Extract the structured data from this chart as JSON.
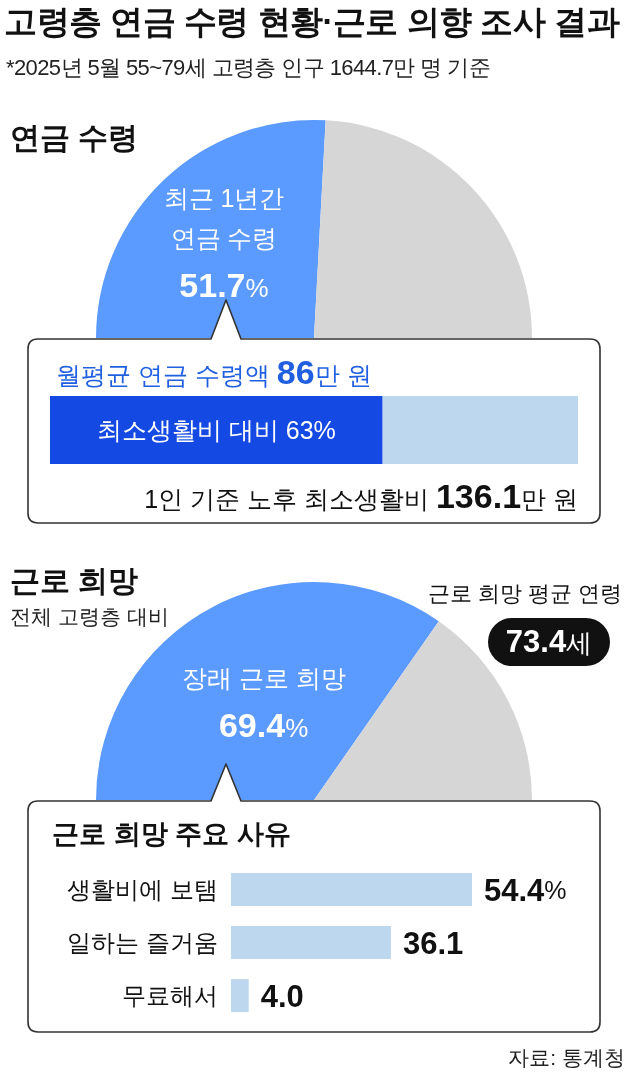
{
  "chart_data": [
    {
      "type": "other",
      "title": "고령층 연금 수령 현황·근로 의향 조사 결과",
      "subtitle": "*2025년 5월 55~79세 고령층 인구 1644.7만 명 기준"
    },
    {
      "type": "pie",
      "title": "연금 수령",
      "categories": [
        "최근 1년간 연금 수령",
        null
      ],
      "values": [
        51.7,
        48.3
      ],
      "colors": [
        "#5b9aff",
        "#d6d6d6"
      ],
      "value_labels": [
        "51.7%",
        null
      ]
    },
    {
      "type": "bar",
      "title": "월평균 연금 수령액 86만 원",
      "orientation": "horizontal",
      "stacked": true,
      "categories": [
        null
      ],
      "series": [
        {
          "color": "#1449e3",
          "values": [
            63
          ],
          "value_labels": [
            "최소생활비 대비 63%"
          ]
        },
        {
          "color": "#bdd7ef",
          "values": [
            37
          ]
        }
      ],
      "xlim": [
        0,
        100
      ],
      "tick_labels": false,
      "annotations": [
        "1인 기준 노후 최소생활비 136.1만 원"
      ]
    },
    {
      "type": "pie",
      "title": "근로 희망",
      "subtitle": "전체 고령층 대비",
      "categories": [
        "장래 근로 희망",
        null
      ],
      "values": [
        69.4,
        30.6
      ],
      "colors": [
        "#5b9aff",
        "#d6d6d6"
      ],
      "value_labels": [
        "69.4%",
        null
      ],
      "annotations": [
        "근로 희망 평균 연령",
        "73.4세"
      ]
    },
    {
      "type": "bar",
      "title": "근로 희망 주요 사유",
      "orientation": "horizontal",
      "categories": [
        "생활비에 보탬",
        "일하는 즐거움",
        "무료해서"
      ],
      "values": [
        54.4,
        36.1,
        4.0
      ],
      "color": "#bdd7ef",
      "value_labels": [
        "54.4%",
        "36.1",
        "4.0"
      ],
      "tick_labels": "y",
      "annotations": [
        "자료: 통계청"
      ]
    }
  ]
}
